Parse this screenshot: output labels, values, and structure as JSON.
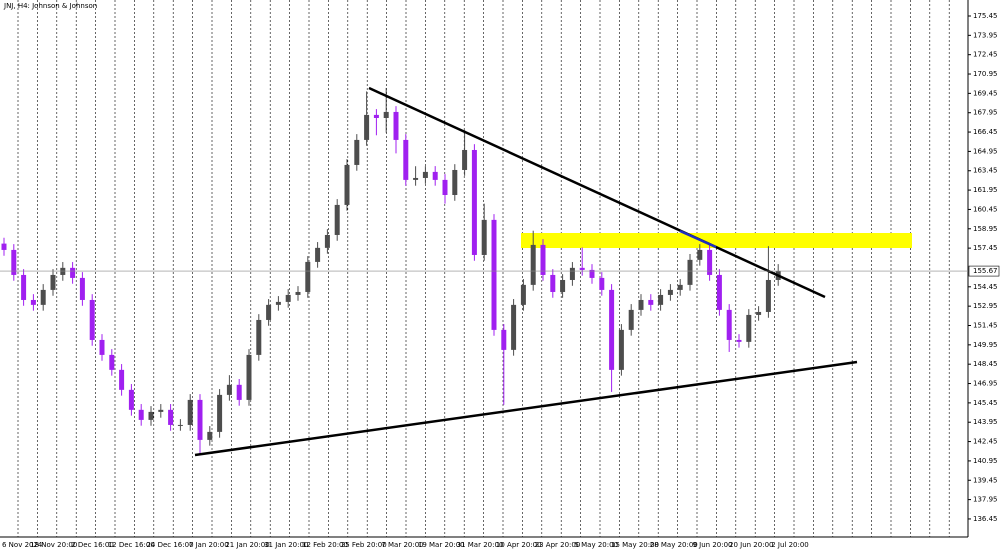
{
  "chart_data": {
    "type": "candlestick",
    "title": "JNJ, H4: Johnson & Johnson",
    "x_labels": [
      "6 Nov 2024",
      "18 Nov 20:00",
      "2 Dec 16:00",
      "12 Dec 16:00",
      "24 Dec 16:00",
      "7 Jan 20:00",
      "21 Jan 20:00",
      "31 Jan 20:00",
      "12 Feb 20:00",
      "25 Feb 20:00",
      "7 Mar 20:00",
      "19 Mar 20:00",
      "31 Mar 20:00",
      "10 Apr 20:00",
      "23 Apr 20:00",
      "5 May 20:00",
      "15 May 20:00",
      "28 May 20:00",
      "9 Jun 20:00",
      "20 Jun 20:00",
      "2 Jul 20:00"
    ],
    "open": [
      157.8,
      157.31,
      155.37,
      153.43,
      153.05,
      154.21,
      155.37,
      155.92,
      155.14,
      153.43,
      150.33,
      149.17,
      148.01,
      146.46,
      144.91,
      144.13,
      144.75,
      144.91,
      143.74,
      143.74,
      145.68,
      142.58,
      143.2,
      146.07,
      146.85,
      145.68,
      149.17,
      151.88,
      153.05,
      153.28,
      153.82,
      154.05,
      156.38,
      157.47,
      158.47,
      160.8,
      163.9,
      165.84,
      167.78,
      167.54,
      168.01,
      165.84,
      162.74,
      162.89,
      163.36,
      162.74,
      161.57,
      163.51,
      165.06,
      156.92,
      159.64,
      151.11,
      149.56,
      153.05,
      154.6,
      157.7,
      155.37,
      154.05,
      154.98,
      155.92,
      155.76,
      155.14,
      154.21,
      148.01,
      151.11,
      152.66,
      153.43,
      153.05,
      153.82,
      154.21,
      154.6,
      156.54,
      157.31,
      155.37,
      152.66,
      150.33,
      150.18,
      152.27,
      152.5,
      154.98
    ],
    "high": [
      158.25,
      157.76,
      155.82,
      153.88,
      154.66,
      155.82,
      156.37,
      156.37,
      155.59,
      153.88,
      150.78,
      149.62,
      148.46,
      146.91,
      145.36,
      145.2,
      145.36,
      145.36,
      144.19,
      146.13,
      146.13,
      143.65,
      146.52,
      147.6,
      147.3,
      149.62,
      152.33,
      153.5,
      153.73,
      154.27,
      154.5,
      156.83,
      157.92,
      158.92,
      161.25,
      164.35,
      166.29,
      169.6,
      168.23,
      169.87,
      168.46,
      166.29,
      163.8,
      163.81,
      163.81,
      163.19,
      163.96,
      166.6,
      165.51,
      160.9,
      160.09,
      151.56,
      153.5,
      155.05,
      158.8,
      158.15,
      155.82,
      155.43,
      156.37,
      157.5,
      156.21,
      155.59,
      154.66,
      151.56,
      153.11,
      153.88,
      153.88,
      154.27,
      154.66,
      155.05,
      156.99,
      157.76,
      157.76,
      155.82,
      153.11,
      150.78,
      152.72,
      152.95,
      157.6,
      156.21
    ],
    "low": [
      156.86,
      154.92,
      152.98,
      152.6,
      152.6,
      153.76,
      154.92,
      154.69,
      152.98,
      149.88,
      148.72,
      147.56,
      146.01,
      144.46,
      143.68,
      143.68,
      144.3,
      143.29,
      143.29,
      143.29,
      141.42,
      142.13,
      142.75,
      145.62,
      145.23,
      145.23,
      148.72,
      151.43,
      152.6,
      152.83,
      153.37,
      153.6,
      155.93,
      157.02,
      158.02,
      160.35,
      163.45,
      165.39,
      166.2,
      166.4,
      164.8,
      162.29,
      162.29,
      162.44,
      162.29,
      160.9,
      161.12,
      163.06,
      156.47,
      156.47,
      150.66,
      145.3,
      149.11,
      152.6,
      154.15,
      154.92,
      153.6,
      153.6,
      154.53,
      155.31,
      154.69,
      153.76,
      146.3,
      147.56,
      150.66,
      152.21,
      152.6,
      152.6,
      153.37,
      153.76,
      154.15,
      156.09,
      154.92,
      152.21,
      149.4,
      149.73,
      149.73,
      151.82,
      152.05,
      154.53
    ],
    "close": [
      157.31,
      155.37,
      153.43,
      153.05,
      154.21,
      155.37,
      155.92,
      155.14,
      153.43,
      150.33,
      149.17,
      148.01,
      146.46,
      144.91,
      144.13,
      144.75,
      144.91,
      143.74,
      143.74,
      145.68,
      142.58,
      143.2,
      146.07,
      146.85,
      145.68,
      149.17,
      151.88,
      153.05,
      153.28,
      153.82,
      154.05,
      156.38,
      157.47,
      158.47,
      160.8,
      163.9,
      165.84,
      167.78,
      167.54,
      168.01,
      165.84,
      162.74,
      162.89,
      163.36,
      162.74,
      161.57,
      163.51,
      165.06,
      156.92,
      159.64,
      151.11,
      149.56,
      153.05,
      154.6,
      157.7,
      155.37,
      154.05,
      154.98,
      155.92,
      155.76,
      155.14,
      154.21,
      148.01,
      151.11,
      152.66,
      153.43,
      153.05,
      153.82,
      154.21,
      154.6,
      156.54,
      157.31,
      155.37,
      152.66,
      150.33,
      150.18,
      152.27,
      152.5,
      154.98,
      155.67
    ],
    "up_color": "#4d4d4d",
    "down_color": "#a020f0",
    "ylim": [
      135.05,
      176.69
    ],
    "yticks": [
      175.45,
      173.95,
      172.45,
      170.95,
      169.45,
      167.95,
      166.45,
      164.95,
      163.45,
      161.95,
      160.45,
      158.95,
      157.45,
      154.45,
      152.95,
      151.45,
      149.95,
      148.45,
      146.95,
      145.45,
      143.95,
      142.45,
      140.95,
      139.45,
      137.95,
      136.45
    ],
    "current_price": 155.67
  }
}
